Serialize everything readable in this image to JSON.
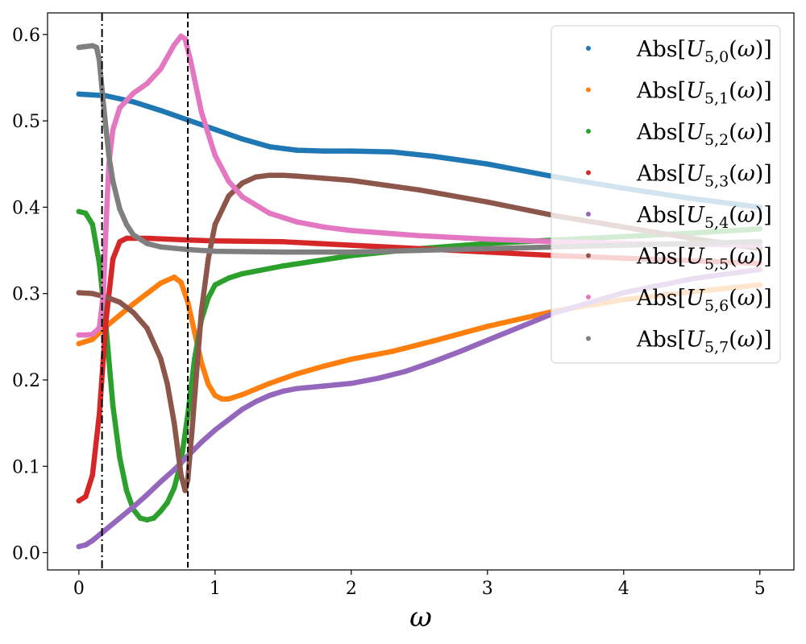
{
  "chart_data": {
    "type": "scatter",
    "title": "",
    "xlabel": "ω",
    "ylabel": "",
    "xlim": [
      -0.23,
      5.25
    ],
    "ylim": [
      -0.02,
      0.625
    ],
    "xticks": [
      0,
      1,
      2,
      3,
      4,
      5
    ],
    "yticks": [
      0.0,
      0.1,
      0.2,
      0.3,
      0.4,
      0.5,
      0.6
    ],
    "xtick_labels": [
      "0",
      "1",
      "2",
      "3",
      "4",
      "5"
    ],
    "ytick_labels": [
      "0.0",
      "0.1",
      "0.2",
      "0.3",
      "0.4",
      "0.5",
      "0.6"
    ],
    "grid": false,
    "legend_position": "top-right",
    "vlines": [
      {
        "x": 0.17,
        "style": "dashdot"
      },
      {
        "x": 0.8,
        "style": "dashed"
      }
    ],
    "series": [
      {
        "name": "Abs[U5,0(ω)]",
        "index": "5,0",
        "color": "#1f77b4",
        "points": [
          [
            0,
            0.531
          ],
          [
            0.1,
            0.53
          ],
          [
            0.2,
            0.529
          ],
          [
            0.4,
            0.522
          ],
          [
            0.6,
            0.512
          ],
          [
            0.8,
            0.501
          ],
          [
            1.0,
            0.49
          ],
          [
            1.2,
            0.479
          ],
          [
            1.4,
            0.47
          ],
          [
            1.6,
            0.466
          ],
          [
            1.8,
            0.465
          ],
          [
            2.0,
            0.465
          ],
          [
            2.3,
            0.464
          ],
          [
            2.6,
            0.459
          ],
          [
            3.0,
            0.45
          ],
          [
            3.5,
            0.435
          ],
          [
            4.0,
            0.422
          ],
          [
            4.5,
            0.41
          ],
          [
            5.0,
            0.4
          ]
        ]
      },
      {
        "name": "Abs[U5,1(ω)]",
        "index": "5,1",
        "color": "#ff7f0e",
        "points": [
          [
            0,
            0.242
          ],
          [
            0.1,
            0.247
          ],
          [
            0.2,
            0.262
          ],
          [
            0.3,
            0.275
          ],
          [
            0.4,
            0.288
          ],
          [
            0.5,
            0.3
          ],
          [
            0.6,
            0.312
          ],
          [
            0.7,
            0.319
          ],
          [
            0.75,
            0.313
          ],
          [
            0.8,
            0.29
          ],
          [
            0.85,
            0.255
          ],
          [
            0.9,
            0.22
          ],
          [
            0.95,
            0.195
          ],
          [
            1.0,
            0.182
          ],
          [
            1.05,
            0.178
          ],
          [
            1.1,
            0.178
          ],
          [
            1.2,
            0.183
          ],
          [
            1.4,
            0.196
          ],
          [
            1.6,
            0.207
          ],
          [
            1.8,
            0.216
          ],
          [
            2.0,
            0.224
          ],
          [
            2.3,
            0.233
          ],
          [
            2.6,
            0.245
          ],
          [
            3.0,
            0.262
          ],
          [
            3.5,
            0.28
          ],
          [
            4.0,
            0.293
          ],
          [
            4.5,
            0.302
          ],
          [
            5.0,
            0.31
          ]
        ]
      },
      {
        "name": "Abs[U5,2(ω)]",
        "index": "5,2",
        "color": "#2ca02c",
        "points": [
          [
            0,
            0.395
          ],
          [
            0.05,
            0.393
          ],
          [
            0.1,
            0.38
          ],
          [
            0.15,
            0.335
          ],
          [
            0.2,
            0.26
          ],
          [
            0.25,
            0.17
          ],
          [
            0.3,
            0.11
          ],
          [
            0.35,
            0.072
          ],
          [
            0.4,
            0.05
          ],
          [
            0.45,
            0.04
          ],
          [
            0.5,
            0.038
          ],
          [
            0.55,
            0.04
          ],
          [
            0.6,
            0.048
          ],
          [
            0.65,
            0.058
          ],
          [
            0.7,
            0.075
          ],
          [
            0.75,
            0.105
          ],
          [
            0.8,
            0.16
          ],
          [
            0.85,
            0.225
          ],
          [
            0.9,
            0.27
          ],
          [
            0.95,
            0.295
          ],
          [
            1.0,
            0.31
          ],
          [
            1.1,
            0.318
          ],
          [
            1.2,
            0.323
          ],
          [
            1.5,
            0.332
          ],
          [
            2.0,
            0.344
          ],
          [
            2.5,
            0.352
          ],
          [
            3.0,
            0.358
          ],
          [
            3.5,
            0.362
          ],
          [
            4.0,
            0.366
          ],
          [
            4.5,
            0.37
          ],
          [
            5.0,
            0.375
          ]
        ]
      },
      {
        "name": "Abs[U5,3(ω)]",
        "index": "5,3",
        "color": "#d62728",
        "points": [
          [
            0,
            0.06
          ],
          [
            0.05,
            0.065
          ],
          [
            0.1,
            0.09
          ],
          [
            0.15,
            0.16
          ],
          [
            0.2,
            0.27
          ],
          [
            0.25,
            0.34
          ],
          [
            0.3,
            0.36
          ],
          [
            0.35,
            0.364
          ],
          [
            0.5,
            0.364
          ],
          [
            0.8,
            0.362
          ],
          [
            1.0,
            0.361
          ],
          [
            1.5,
            0.36
          ],
          [
            2.0,
            0.356
          ],
          [
            2.5,
            0.352
          ],
          [
            3.0,
            0.348
          ],
          [
            3.5,
            0.344
          ],
          [
            4.0,
            0.341
          ],
          [
            4.5,
            0.338
          ],
          [
            5.0,
            0.335
          ]
        ]
      },
      {
        "name": "Abs[U5,4(ω)]",
        "index": "5,4",
        "color": "#9467bd",
        "points": [
          [
            0,
            0.007
          ],
          [
            0.05,
            0.009
          ],
          [
            0.1,
            0.014
          ],
          [
            0.2,
            0.027
          ],
          [
            0.3,
            0.04
          ],
          [
            0.4,
            0.053
          ],
          [
            0.5,
            0.067
          ],
          [
            0.6,
            0.082
          ],
          [
            0.7,
            0.096
          ],
          [
            0.8,
            0.112
          ],
          [
            0.9,
            0.128
          ],
          [
            1.0,
            0.142
          ],
          [
            1.1,
            0.154
          ],
          [
            1.2,
            0.166
          ],
          [
            1.3,
            0.175
          ],
          [
            1.4,
            0.182
          ],
          [
            1.5,
            0.187
          ],
          [
            1.6,
            0.19
          ],
          [
            1.8,
            0.193
          ],
          [
            2.0,
            0.196
          ],
          [
            2.2,
            0.202
          ],
          [
            2.4,
            0.21
          ],
          [
            2.6,
            0.221
          ],
          [
            2.8,
            0.233
          ],
          [
            3.0,
            0.246
          ],
          [
            3.5,
            0.278
          ],
          [
            4.0,
            0.301
          ],
          [
            4.5,
            0.317
          ],
          [
            5.0,
            0.328
          ]
        ]
      },
      {
        "name": "Abs[U5,5(ω)]",
        "index": "5,5",
        "color": "#8c564b",
        "points": [
          [
            0,
            0.301
          ],
          [
            0.1,
            0.3
          ],
          [
            0.2,
            0.296
          ],
          [
            0.3,
            0.29
          ],
          [
            0.4,
            0.278
          ],
          [
            0.5,
            0.26
          ],
          [
            0.6,
            0.225
          ],
          [
            0.65,
            0.195
          ],
          [
            0.7,
            0.15
          ],
          [
            0.75,
            0.09
          ],
          [
            0.78,
            0.072
          ],
          [
            0.8,
            0.085
          ],
          [
            0.83,
            0.14
          ],
          [
            0.87,
            0.22
          ],
          [
            0.9,
            0.28
          ],
          [
            0.95,
            0.34
          ],
          [
            1.0,
            0.38
          ],
          [
            1.1,
            0.413
          ],
          [
            1.2,
            0.428
          ],
          [
            1.3,
            0.435
          ],
          [
            1.4,
            0.437
          ],
          [
            1.5,
            0.437
          ],
          [
            1.6,
            0.436
          ],
          [
            2.0,
            0.431
          ],
          [
            2.5,
            0.42
          ],
          [
            3.0,
            0.406
          ],
          [
            3.5,
            0.39
          ],
          [
            4.0,
            0.377
          ],
          [
            4.5,
            0.364
          ],
          [
            5.0,
            0.352
          ]
        ]
      },
      {
        "name": "Abs[U5,6(ω)]",
        "index": "5,6",
        "color": "#e377c2",
        "points": [
          [
            0,
            0.252
          ],
          [
            0.05,
            0.252
          ],
          [
            0.1,
            0.253
          ],
          [
            0.15,
            0.26
          ],
          [
            0.18,
            0.3
          ],
          [
            0.2,
            0.38
          ],
          [
            0.22,
            0.45
          ],
          [
            0.25,
            0.49
          ],
          [
            0.3,
            0.515
          ],
          [
            0.4,
            0.532
          ],
          [
            0.5,
            0.543
          ],
          [
            0.6,
            0.56
          ],
          [
            0.7,
            0.588
          ],
          [
            0.75,
            0.598
          ],
          [
            0.78,
            0.595
          ],
          [
            0.82,
            0.57
          ],
          [
            0.9,
            0.51
          ],
          [
            1.0,
            0.46
          ],
          [
            1.1,
            0.43
          ],
          [
            1.2,
            0.412
          ],
          [
            1.4,
            0.393
          ],
          [
            1.6,
            0.383
          ],
          [
            1.8,
            0.377
          ],
          [
            2.0,
            0.373
          ],
          [
            2.5,
            0.367
          ],
          [
            3.0,
            0.363
          ],
          [
            3.5,
            0.36
          ],
          [
            4.0,
            0.358
          ],
          [
            4.5,
            0.357
          ],
          [
            5.0,
            0.356
          ]
        ]
      },
      {
        "name": "Abs[U5,7(ω)]",
        "index": "5,7",
        "color": "#7f7f7f",
        "points": [
          [
            0,
            0.585
          ],
          [
            0.05,
            0.586
          ],
          [
            0.1,
            0.587
          ],
          [
            0.13,
            0.585
          ],
          [
            0.15,
            0.57
          ],
          [
            0.18,
            0.52
          ],
          [
            0.2,
            0.49
          ],
          [
            0.22,
            0.46
          ],
          [
            0.25,
            0.43
          ],
          [
            0.3,
            0.398
          ],
          [
            0.35,
            0.38
          ],
          [
            0.4,
            0.368
          ],
          [
            0.5,
            0.358
          ],
          [
            0.6,
            0.354
          ],
          [
            0.8,
            0.351
          ],
          [
            1.0,
            0.349
          ],
          [
            1.5,
            0.348
          ],
          [
            2.0,
            0.348
          ],
          [
            2.5,
            0.35
          ],
          [
            3.0,
            0.352
          ],
          [
            3.5,
            0.354
          ],
          [
            4.0,
            0.356
          ],
          [
            4.5,
            0.358
          ],
          [
            5.0,
            0.36
          ]
        ]
      }
    ]
  }
}
